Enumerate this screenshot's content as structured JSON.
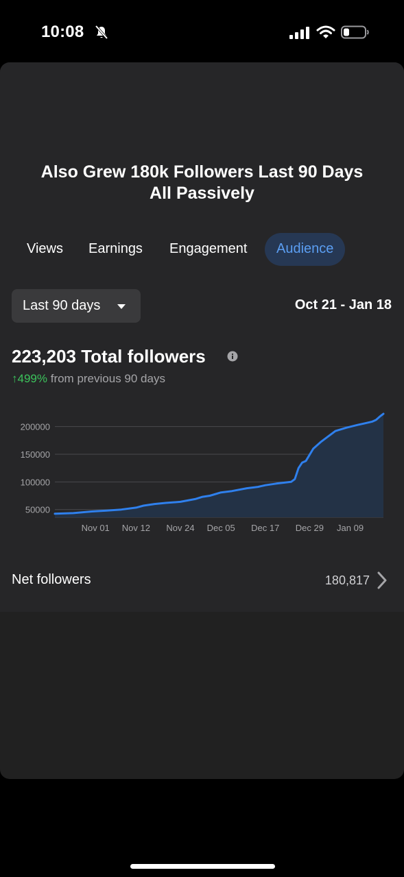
{
  "status_bar": {
    "time": "10:08"
  },
  "headline": {
    "line1": "Also Grew 180k Followers Last 90 Days",
    "line2": "All Passively"
  },
  "tabs": [
    {
      "label": "Views",
      "active": false
    },
    {
      "label": "Earnings",
      "active": false
    },
    {
      "label": "Engagement",
      "active": false
    },
    {
      "label": "Audience",
      "active": true
    }
  ],
  "filter": {
    "range_label": "Last 90 days",
    "date_range": "Oct 21 - Jan 18"
  },
  "summary": {
    "total_value": "223,203",
    "total_label": "Total followers",
    "growth_pct": "499%",
    "growth_text": "from previous 90 days"
  },
  "chart_data": {
    "type": "area",
    "x_tick_labels": [
      "Nov 01",
      "Nov 12",
      "Nov 24",
      "Dec 05",
      "Dec 17",
      "Dec 29",
      "Jan 09"
    ],
    "x_tick_days": [
      11,
      22,
      34,
      45,
      57,
      69,
      80
    ],
    "y_ticks": [
      50000,
      100000,
      150000,
      200000
    ],
    "y_tick_labels": [
      "50000",
      "100000",
      "150000",
      "200000"
    ],
    "ylim": [
      36000,
      228000
    ],
    "xlim": [
      0,
      89
    ],
    "grid": true,
    "series": [
      {
        "x": [
          0,
          5,
          10,
          14,
          18,
          22,
          24,
          27,
          30,
          34,
          38,
          40,
          42,
          45,
          48,
          52,
          55,
          57,
          60,
          64,
          65,
          66,
          67,
          68,
          70,
          72,
          74,
          76,
          79,
          82,
          84,
          86,
          87,
          88,
          89
        ],
        "values": [
          42400,
          43500,
          46500,
          48000,
          50000,
          53500,
          57000,
          60000,
          62000,
          64000,
          69000,
          73000,
          75000,
          81000,
          83500,
          88500,
          91000,
          94000,
          97000,
          100000,
          105000,
          125000,
          135000,
          138000,
          160000,
          172000,
          182000,
          192000,
          198000,
          203000,
          206000,
          209000,
          212000,
          218000,
          223203
        ]
      }
    ],
    "colors": {
      "line": "#2f80ed",
      "fill": "#233246",
      "grid": "#4a4a4e",
      "tick": "#a5a5a8"
    }
  },
  "net_followers": {
    "label": "Net followers",
    "value": "180,817"
  }
}
